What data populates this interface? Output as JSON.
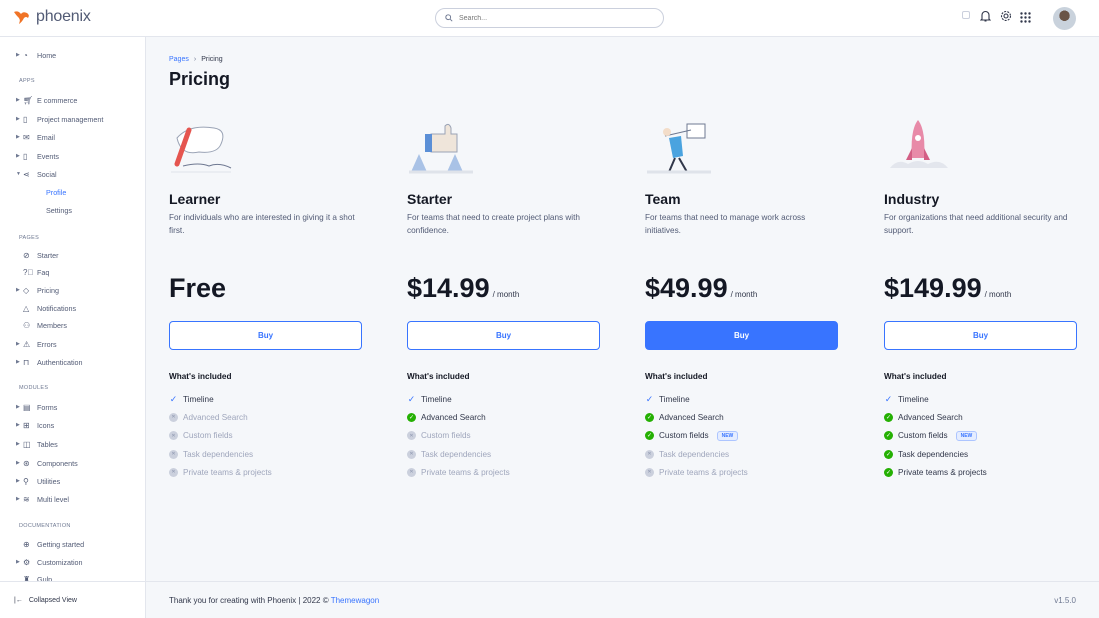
{
  "brand": {
    "name": "phoenix",
    "accent": "#3874ff",
    "logo_color": "#f07427"
  },
  "header": {
    "search_placeholder": "Search...",
    "icons": [
      "theme-toggle-icon",
      "bell-icon",
      "gear-icon",
      "apps-grid-icon"
    ]
  },
  "sidebar": {
    "sections": [
      {
        "label": "",
        "items": [
          {
            "label": "Home",
            "icon": "pie-chart-icon",
            "caret": true
          }
        ]
      },
      {
        "label": "APPS",
        "items": [
          {
            "label": "E commerce",
            "icon": "cart-icon",
            "caret": true
          },
          {
            "label": "Project management",
            "icon": "clipboard-icon",
            "caret": true
          },
          {
            "label": "Email",
            "icon": "mail-icon",
            "caret": true
          },
          {
            "label": "Events",
            "icon": "clipboard-icon",
            "caret": true
          },
          {
            "label": "Social",
            "icon": "share-icon",
            "caret": true,
            "expanded": true,
            "children": [
              "Profile",
              "Settings"
            ],
            "active_child": "Profile"
          }
        ]
      },
      {
        "label": "PAGES",
        "items": [
          {
            "label": "Starter",
            "icon": "compass-icon"
          },
          {
            "label": "Faq",
            "icon": "help-icon"
          },
          {
            "label": "Pricing",
            "icon": "tag-icon",
            "caret": true
          },
          {
            "label": "Notifications",
            "icon": "bell-icon"
          },
          {
            "label": "Members",
            "icon": "users-icon"
          },
          {
            "label": "Errors",
            "icon": "alert-icon",
            "caret": true
          },
          {
            "label": "Authentication",
            "icon": "lock-icon",
            "caret": true
          }
        ]
      },
      {
        "label": "MODULES",
        "items": [
          {
            "label": "Forms",
            "icon": "file-icon",
            "caret": true
          },
          {
            "label": "Icons",
            "icon": "grid-icon",
            "caret": true
          },
          {
            "label": "Tables",
            "icon": "columns-icon",
            "caret": true
          },
          {
            "label": "Components",
            "icon": "package-icon",
            "caret": true
          },
          {
            "label": "Utilities",
            "icon": "tool-icon",
            "caret": true
          },
          {
            "label": "Multi level",
            "icon": "layers-icon",
            "caret": true
          }
        ]
      },
      {
        "label": "DOCUMENTATION",
        "items": [
          {
            "label": "Getting started",
            "icon": "lifebuoy-icon"
          },
          {
            "label": "Customization",
            "icon": "settings-icon",
            "caret": true
          },
          {
            "label": "Gulp",
            "icon": "cup-icon"
          }
        ]
      }
    ],
    "collapse_label": "Collapsed View"
  },
  "breadcrumb": {
    "parent": "Pages",
    "current": "Pricing"
  },
  "page_title": "Pricing",
  "included_label": "What's included",
  "new_badge": "NEW",
  "features": [
    "Timeline",
    "Advanced Search",
    "Custom fields",
    "Task dependencies",
    "Private teams & projects"
  ],
  "plans": [
    {
      "name": "Learner",
      "desc": "For individuals who are interested in giving it a shot first.",
      "price": "Free",
      "per": "",
      "buy": "Buy",
      "primary": false,
      "included": [
        true,
        false,
        false,
        false,
        false
      ]
    },
    {
      "name": "Starter",
      "desc": "For teams that need to create project plans with confidence.",
      "price": "$14.99",
      "per": "/ month",
      "buy": "Buy",
      "primary": false,
      "included": [
        true,
        true,
        false,
        false,
        false
      ]
    },
    {
      "name": "Team",
      "desc": "For teams that need to manage work across initiatives.",
      "price": "$49.99",
      "per": "/ month",
      "buy": "Buy",
      "primary": true,
      "included": [
        true,
        true,
        true,
        false,
        false
      ]
    },
    {
      "name": "Industry",
      "desc": "For organizations that need additional security and support.",
      "price": "$149.99",
      "per": "/ month",
      "buy": "Buy",
      "primary": false,
      "included": [
        true,
        true,
        true,
        true,
        true
      ]
    }
  ],
  "footer": {
    "text": "Thank you for creating with Phoenix | 2022 ©",
    "link": "Themewagon",
    "version": "v1.5.0"
  }
}
